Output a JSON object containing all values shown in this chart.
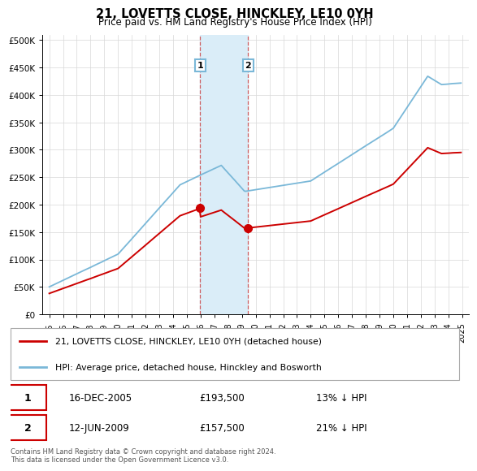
{
  "title": "21, LOVETTS CLOSE, HINCKLEY, LE10 0YH",
  "subtitle": "Price paid vs. HM Land Registry's House Price Index (HPI)",
  "legend_line1": "21, LOVETTS CLOSE, HINCKLEY, LE10 0YH (detached house)",
  "legend_line2": "HPI: Average price, detached house, Hinckley and Bosworth",
  "transaction1_date": "16-DEC-2005",
  "transaction1_price": "£193,500",
  "transaction1_hpi": "13% ↓ HPI",
  "transaction2_date": "12-JUN-2009",
  "transaction2_price": "£157,500",
  "transaction2_hpi": "21% ↓ HPI",
  "footer": "Contains HM Land Registry data © Crown copyright and database right 2024.\nThis data is licensed under the Open Government Licence v3.0.",
  "hpi_color": "#7ab8d8",
  "price_color": "#cc0000",
  "shade_color": "#daedf8",
  "transaction1_x": 2005.96,
  "transaction2_x": 2009.45,
  "transaction1_y": 193500,
  "transaction2_y": 157500,
  "ylim": [
    0,
    510000
  ],
  "xlim_start": 1994.5,
  "xlim_end": 2025.5,
  "yticks": [
    0,
    50000,
    100000,
    150000,
    200000,
    250000,
    300000,
    350000,
    400000,
    450000,
    500000
  ],
  "ytick_labels": [
    "£0",
    "£50K",
    "£100K",
    "£150K",
    "£200K",
    "£250K",
    "£300K",
    "£350K",
    "£400K",
    "£450K",
    "£500K"
  ]
}
